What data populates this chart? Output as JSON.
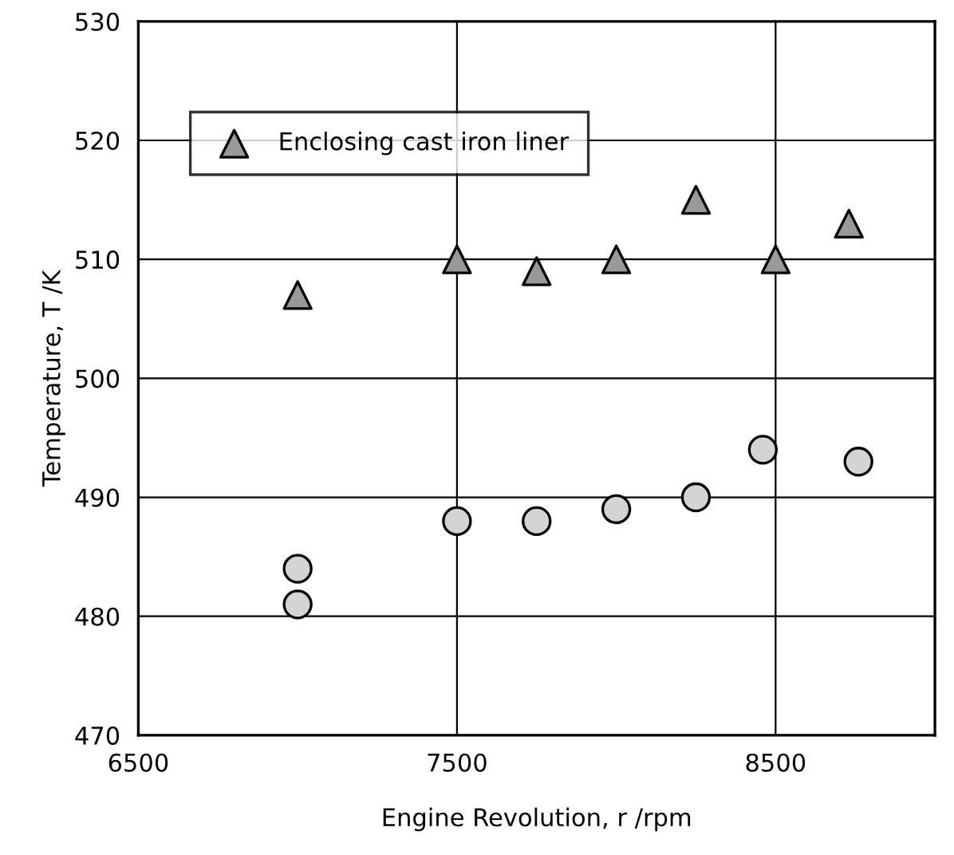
{
  "chart_data": {
    "type": "scatter",
    "xlabel": "Engine Revolution, r /rpm",
    "ylabel": "Temperature, T /K",
    "xlim": [
      6500,
      9000
    ],
    "xticks": [
      6500,
      7500,
      8500
    ],
    "ylim": [
      470,
      530
    ],
    "yticks": [
      470,
      480,
      490,
      500,
      510,
      520,
      530
    ],
    "grid": true,
    "legend": "top left",
    "series": [
      {
        "color": "#d4d4d4",
        "marker": "circle",
        "x": [
          7000,
          7000,
          7500,
          7750,
          8000,
          8250,
          8460,
          8760
        ],
        "values": [
          481,
          484,
          488,
          488,
          489,
          490,
          494,
          493
        ]
      },
      {
        "name": "Enclosing cast iron liner",
        "color": "#999999",
        "marker": "triangle",
        "x": [
          7000,
          7500,
          7750,
          8000,
          8250,
          8500,
          8730
        ],
        "values": [
          507,
          510,
          509,
          510,
          515,
          510,
          513
        ]
      }
    ]
  }
}
